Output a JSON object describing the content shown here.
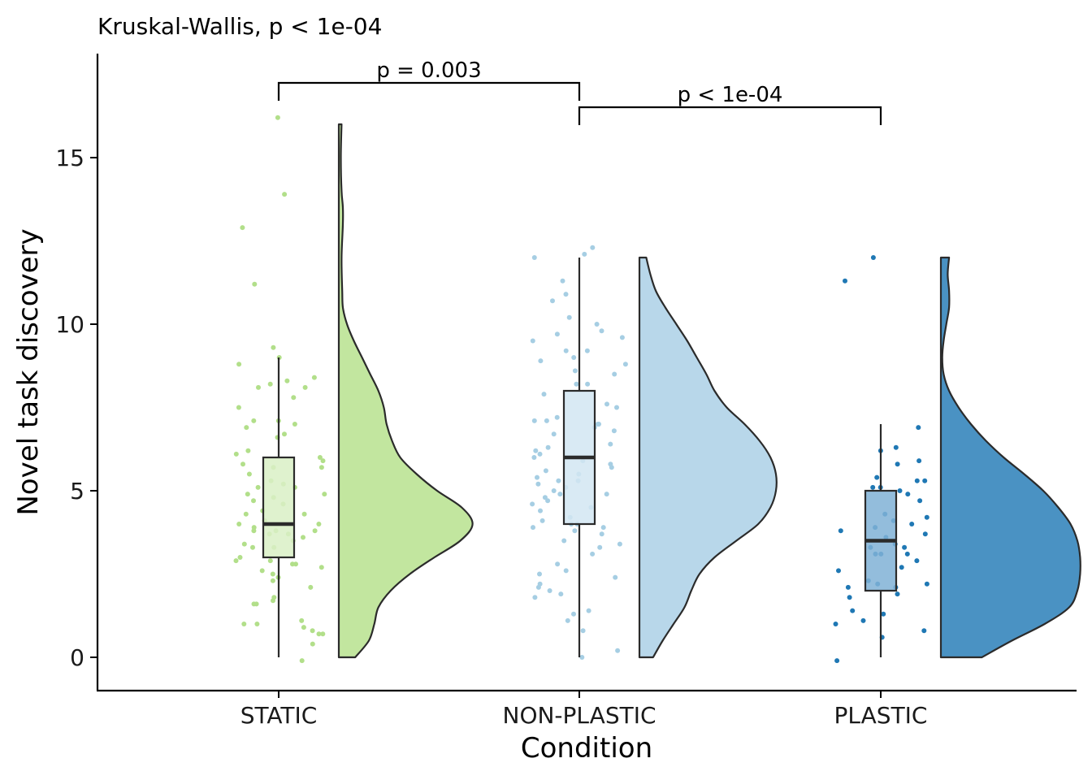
{
  "chart_data": {
    "type": "raincloud",
    "title": "Kruskal-Wallis, p < 1e-04",
    "xlabel": "Condition",
    "ylabel": "Novel task discovery",
    "ylim": [
      -1,
      18
    ],
    "yticks": [
      0,
      5,
      10,
      15
    ],
    "categories": [
      "STATIC",
      "NON-PLASTIC",
      "PLASTIC"
    ],
    "colors": {
      "STATIC": {
        "point": "#b2df8a",
        "box": "#d9f0c5",
        "cloud": "#c2e69f"
      },
      "NON-PLASTIC": {
        "point": "#a6cee3",
        "box": "#d2e6f2",
        "cloud": "#b8d7ea"
      },
      "PLASTIC": {
        "point": "#1f78b4",
        "box": "#80b1d6",
        "cloud": "#4a92c3"
      }
    },
    "boxes": [
      {
        "category": "STATIC",
        "min": 0,
        "q1": 3,
        "median": 4,
        "q3": 6,
        "max": 9
      },
      {
        "category": "NON-PLASTIC",
        "min": 0,
        "q1": 4,
        "median": 6,
        "q3": 8,
        "max": 12
      },
      {
        "category": "PLASTIC",
        "min": 0,
        "q1": 2,
        "median": 3.5,
        "q3": 5,
        "max": 7
      }
    ],
    "densities": [
      {
        "category": "STATIC",
        "y": [
          0,
          0.5,
          1.0,
          1.5,
          2.0,
          2.5,
          3.0,
          3.5,
          4.0,
          4.5,
          5.0,
          5.5,
          6.0,
          6.5,
          7.0,
          7.5,
          8.0,
          8.5,
          9.0,
          9.5,
          10.0,
          10.5,
          11.0,
          12.0,
          13.0,
          13.5,
          14.0,
          15.0,
          16.0
        ],
        "density": [
          0.12,
          0.22,
          0.26,
          0.29,
          0.38,
          0.52,
          0.7,
          0.89,
          0.98,
          0.9,
          0.72,
          0.57,
          0.45,
          0.39,
          0.35,
          0.33,
          0.29,
          0.23,
          0.17,
          0.11,
          0.06,
          0.03,
          0.025,
          0.02,
          0.03,
          0.03,
          0.02,
          0.015,
          0.02
        ]
      },
      {
        "category": "NON-PLASTIC",
        "y": [
          0,
          0.5,
          1.0,
          1.5,
          2.0,
          2.5,
          3.0,
          3.5,
          4.0,
          4.5,
          5.0,
          5.5,
          6.0,
          6.5,
          7.0,
          7.5,
          8.0,
          8.5,
          9.0,
          9.5,
          10.0,
          10.5,
          11.0,
          11.5,
          12.0
        ],
        "density": [
          0.1,
          0.17,
          0.25,
          0.33,
          0.38,
          0.44,
          0.55,
          0.71,
          0.87,
          0.96,
          1.0,
          1.0,
          0.96,
          0.88,
          0.77,
          0.64,
          0.55,
          0.49,
          0.42,
          0.35,
          0.27,
          0.19,
          0.12,
          0.08,
          0.05
        ]
      },
      {
        "category": "PLASTIC",
        "y": [
          0,
          0.5,
          1.0,
          1.5,
          2.0,
          2.5,
          3.0,
          3.5,
          4.0,
          4.5,
          5.0,
          5.5,
          6.0,
          6.5,
          7.0,
          7.5,
          8.0,
          8.5,
          9.0,
          9.5,
          10.0,
          10.5,
          11.0,
          11.5,
          12.0
        ],
        "density": [
          0.3,
          0.52,
          0.76,
          0.94,
          1.0,
          1.02,
          1.02,
          1.0,
          0.95,
          0.86,
          0.75,
          0.61,
          0.46,
          0.33,
          0.22,
          0.13,
          0.06,
          0.02,
          0.01,
          0.02,
          0.04,
          0.06,
          0.06,
          0.05,
          0.06
        ]
      }
    ],
    "points": [
      {
        "category": "STATIC",
        "values": [
          16.2,
          13.9,
          12.9,
          11.2,
          9.3,
          9.0,
          8.8,
          8.4,
          8.3,
          8.2,
          8.1,
          8.1,
          7.8,
          7.5,
          7.1,
          7.1,
          7.0,
          6.9,
          6.7,
          6.6,
          6.2,
          6.1,
          6.0,
          5.9,
          5.8,
          5.7,
          5.7,
          5.5,
          5.3,
          5.2,
          5.1,
          5.1,
          4.9,
          4.9,
          4.8,
          4.7,
          4.6,
          4.4,
          4.3,
          4.3,
          4.1,
          4.1,
          4.0,
          4.0,
          3.9,
          3.8,
          3.8,
          3.8,
          3.7,
          3.7,
          3.6,
          3.5,
          3.4,
          3.3,
          3.3,
          3.0,
          2.9,
          2.9,
          2.8,
          2.8,
          2.7,
          2.6,
          2.5,
          2.4,
          2.3,
          2.1,
          1.8,
          1.7,
          1.6,
          1.6,
          1.1,
          1.0,
          1.0,
          0.9,
          0.8,
          0.7,
          0.7,
          0.4,
          -0.1
        ]
      },
      {
        "category": "NON-PLASTIC",
        "values": [
          12.3,
          12.1,
          12.0,
          11.3,
          10.9,
          10.7,
          10.2,
          10.0,
          9.8,
          9.7,
          9.6,
          9.5,
          9.2,
          9.2,
          9.0,
          8.9,
          8.8,
          8.6,
          8.5,
          8.2,
          8.2,
          7.9,
          7.6,
          7.5,
          7.2,
          7.1,
          7.1,
          7.0,
          7.0,
          6.9,
          6.8,
          6.7,
          6.4,
          6.3,
          6.2,
          6.1,
          6.0,
          5.9,
          5.8,
          5.7,
          5.6,
          5.5,
          5.4,
          5.3,
          5.3,
          5.2,
          5.1,
          5.0,
          4.9,
          4.9,
          4.8,
          4.7,
          4.6,
          4.5,
          4.4,
          4.2,
          4.1,
          4.0,
          4.0,
          3.9,
          3.9,
          3.8,
          3.7,
          3.5,
          3.4,
          3.3,
          3.1,
          2.8,
          2.6,
          2.5,
          2.4,
          2.2,
          2.1,
          2.0,
          1.9,
          1.8,
          1.4,
          1.3,
          1.1,
          0.8,
          0.2,
          0.0
        ]
      },
      {
        "category": "PLASTIC",
        "values": [
          12.0,
          11.3,
          6.9,
          6.3,
          6.2,
          5.9,
          5.8,
          5.4,
          5.3,
          5.3,
          5.1,
          5.1,
          5.0,
          4.9,
          4.7,
          4.3,
          4.2,
          4.1,
          4.0,
          3.9,
          3.8,
          3.7,
          3.6,
          3.4,
          3.3,
          3.3,
          3.1,
          3.1,
          3.1,
          2.9,
          2.7,
          2.6,
          2.3,
          2.2,
          2.2,
          2.1,
          2.1,
          1.9,
          1.8,
          1.4,
          1.3,
          1.1,
          1.0,
          0.8,
          0.6,
          -0.1
        ]
      }
    ],
    "comparisons": [
      {
        "group1": "STATIC",
        "group2": "NON-PLASTIC",
        "label": "p = 0.003"
      },
      {
        "group1": "NON-PLASTIC",
        "group2": "PLASTIC",
        "label": "p < 1e-04"
      }
    ]
  }
}
